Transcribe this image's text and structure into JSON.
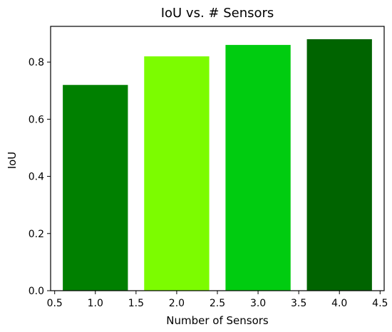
{
  "chart_data": {
    "type": "bar",
    "title": "IoU vs. # Sensors",
    "xlabel": "Number of Sensors",
    "ylabel": "IoU",
    "x": [
      1.0,
      2.0,
      3.0,
      4.0
    ],
    "values": [
      0.72,
      0.82,
      0.86,
      0.88
    ],
    "bar_width": 0.8,
    "colors": [
      "#008000",
      "#7cfc00",
      "#00cc10",
      "#006400"
    ],
    "xlim": [
      0.45,
      4.55
    ],
    "ylim": [
      0.0,
      0.925
    ],
    "xticks": [
      0.5,
      1.0,
      1.5,
      2.0,
      2.5,
      3.0,
      3.5,
      4.0,
      4.5
    ],
    "xtick_labels": [
      "0.5",
      "1.0",
      "1.5",
      "2.0",
      "2.5",
      "3.0",
      "3.5",
      "4.0",
      "4.5"
    ],
    "yticks": [
      0.0,
      0.2,
      0.4,
      0.6,
      0.8
    ],
    "ytick_labels": [
      "0.0",
      "0.2",
      "0.4",
      "0.6",
      "0.8"
    ],
    "grid": false,
    "legend": null
  }
}
